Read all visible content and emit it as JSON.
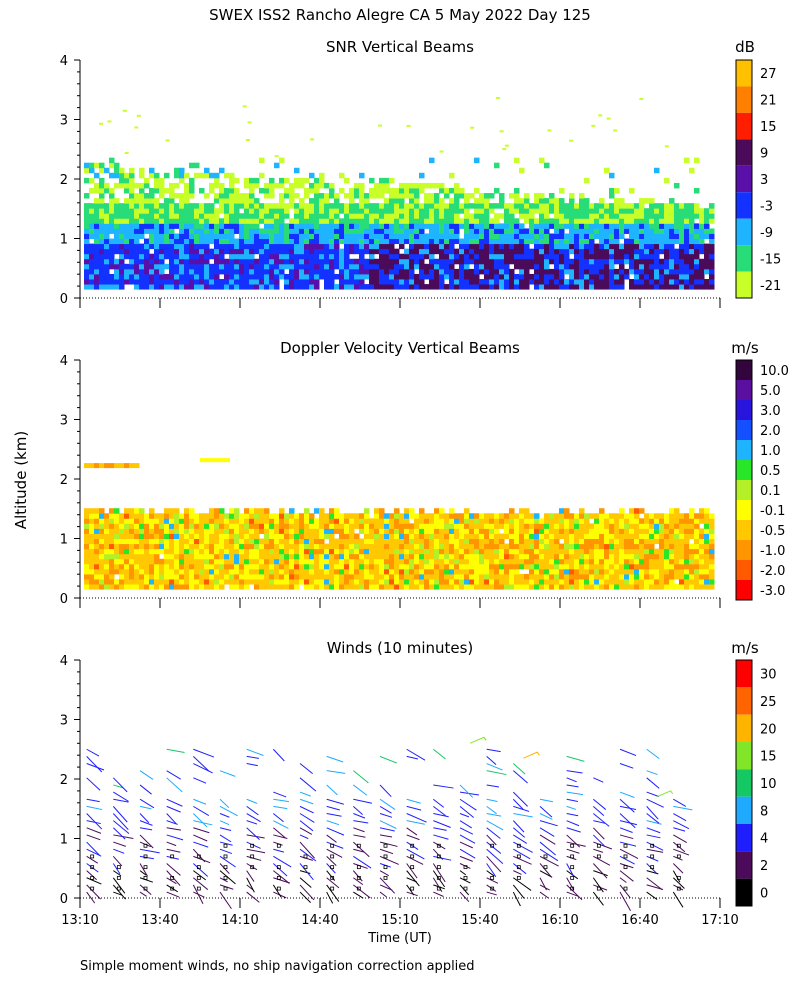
{
  "figure": {
    "title": "SWEX ISS2 Rancho Alegre CA   5 May 2022 Day 125",
    "ylabel": "Altitude (km)",
    "xlabel": "Time (UT)",
    "footnote": "Simple moment winds, no ship navigation correction applied"
  },
  "chart_data": [
    {
      "type": "heatmap",
      "title": "SNR Vertical Beams",
      "units": "dB",
      "xlabel": "Time (UT)",
      "ylabel": "Altitude (km)",
      "xlim": [
        "13:10",
        "17:10"
      ],
      "ylim": [
        0,
        4
      ],
      "xticks": [
        "13:10",
        "13:40",
        "14:10",
        "14:40",
        "15:10",
        "15:40",
        "16:10",
        "16:40",
        "17:10"
      ],
      "yticks": [
        0,
        1,
        2,
        3,
        4
      ],
      "colorbar": {
        "labels": [
          "27",
          "21",
          "15",
          "9",
          "3",
          "-3",
          "-9",
          "-15",
          "-21"
        ],
        "colors": [
          "#ffc000",
          "#ff8000",
          "#ff1e00",
          "#4b0a5a",
          "#5a0fa8",
          "#1432ff",
          "#1eb4ff",
          "#28dc78",
          "#c8ff28"
        ]
      },
      "description_values": [
        {
          "altitude_range_km": [
            0.15,
            0.9
          ],
          "snr_db_approx": [
            -3,
            9
          ]
        },
        {
          "altitude_range_km": [
            0.9,
            1.5
          ],
          "snr_db_approx": [
            -15,
            -3
          ]
        },
        {
          "altitude_range_km": [
            1.5,
            2.25
          ],
          "snr_db_approx": [
            -21,
            -15
          ]
        }
      ]
    },
    {
      "type": "heatmap",
      "title": "Doppler Velocity Vertical Beams",
      "units": "m/s",
      "xlabel": "Time (UT)",
      "ylabel": "Altitude (km)",
      "xlim": [
        "13:10",
        "17:10"
      ],
      "ylim": [
        0,
        4
      ],
      "xticks": [
        "13:10",
        "13:40",
        "14:10",
        "14:40",
        "15:10",
        "15:40",
        "16:10",
        "16:40",
        "17:10"
      ],
      "yticks": [
        0,
        1,
        2,
        3,
        4
      ],
      "colorbar": {
        "labels": [
          "10.0",
          "5.0",
          "3.0",
          "2.0",
          "1.0",
          "0.5",
          "0.1",
          "-0.1",
          "-0.5",
          "-1.0",
          "-2.0",
          "-3.0"
        ],
        "colors": [
          "#32053c",
          "#5a0fa0",
          "#2814dc",
          "#1450ff",
          "#1eb4ff",
          "#28e628",
          "#b4f028",
          "#ffff00",
          "#ffc800",
          "#ff9600",
          "#ff5a00",
          "#ff0000"
        ]
      },
      "description_values": [
        {
          "altitude_range_km": [
            0.15,
            1.5
          ],
          "velocity_ms_approx": [
            -1.0,
            -0.1
          ]
        },
        {
          "altitude_range_km": [
            2.1,
            2.25
          ],
          "velocity_ms_approx": [
            -1.0,
            -0.1
          ]
        }
      ]
    },
    {
      "type": "scatter",
      "title": "Winds (10 minutes)",
      "units": "m/s",
      "xlabel": "Time (UT)",
      "ylabel": "Altitude (km)",
      "xlim": [
        "13:10",
        "17:10"
      ],
      "ylim": [
        0,
        4
      ],
      "xticks": [
        "13:10",
        "13:40",
        "14:10",
        "14:40",
        "15:10",
        "15:40",
        "16:10",
        "16:40",
        "17:10"
      ],
      "yticks": [
        0,
        1,
        2,
        3,
        4
      ],
      "colorbar": {
        "labels": [
          "30",
          "25",
          "20",
          "15",
          "10",
          "8",
          "4",
          "2",
          "0"
        ],
        "colors": [
          "#ff0000",
          "#ff6400",
          "#ffb400",
          "#82e628",
          "#14c864",
          "#1eaaff",
          "#1e1eff",
          "#4b0a5a",
          "#000000"
        ]
      },
      "profile_times": [
        "13:20",
        "13:30",
        "13:40",
        "13:50",
        "14:00",
        "14:10",
        "14:20",
        "14:30",
        "14:40",
        "14:50",
        "15:00",
        "15:10",
        "15:20",
        "15:30",
        "15:40",
        "15:50",
        "16:00",
        "16:10",
        "16:20",
        "16:30",
        "16:40",
        "16:50",
        "17:00"
      ],
      "description_values": [
        {
          "altitude_range_km": [
            0.1,
            0.8
          ],
          "speed_ms_approx": [
            0,
            6
          ]
        },
        {
          "altitude_range_km": [
            0.8,
            2.5
          ],
          "speed_ms_approx": [
            2,
            15
          ]
        },
        {
          "altitude_range_km": [
            2.3,
            2.7
          ],
          "speed_ms_approx": [
            15,
            25
          ]
        }
      ]
    }
  ]
}
